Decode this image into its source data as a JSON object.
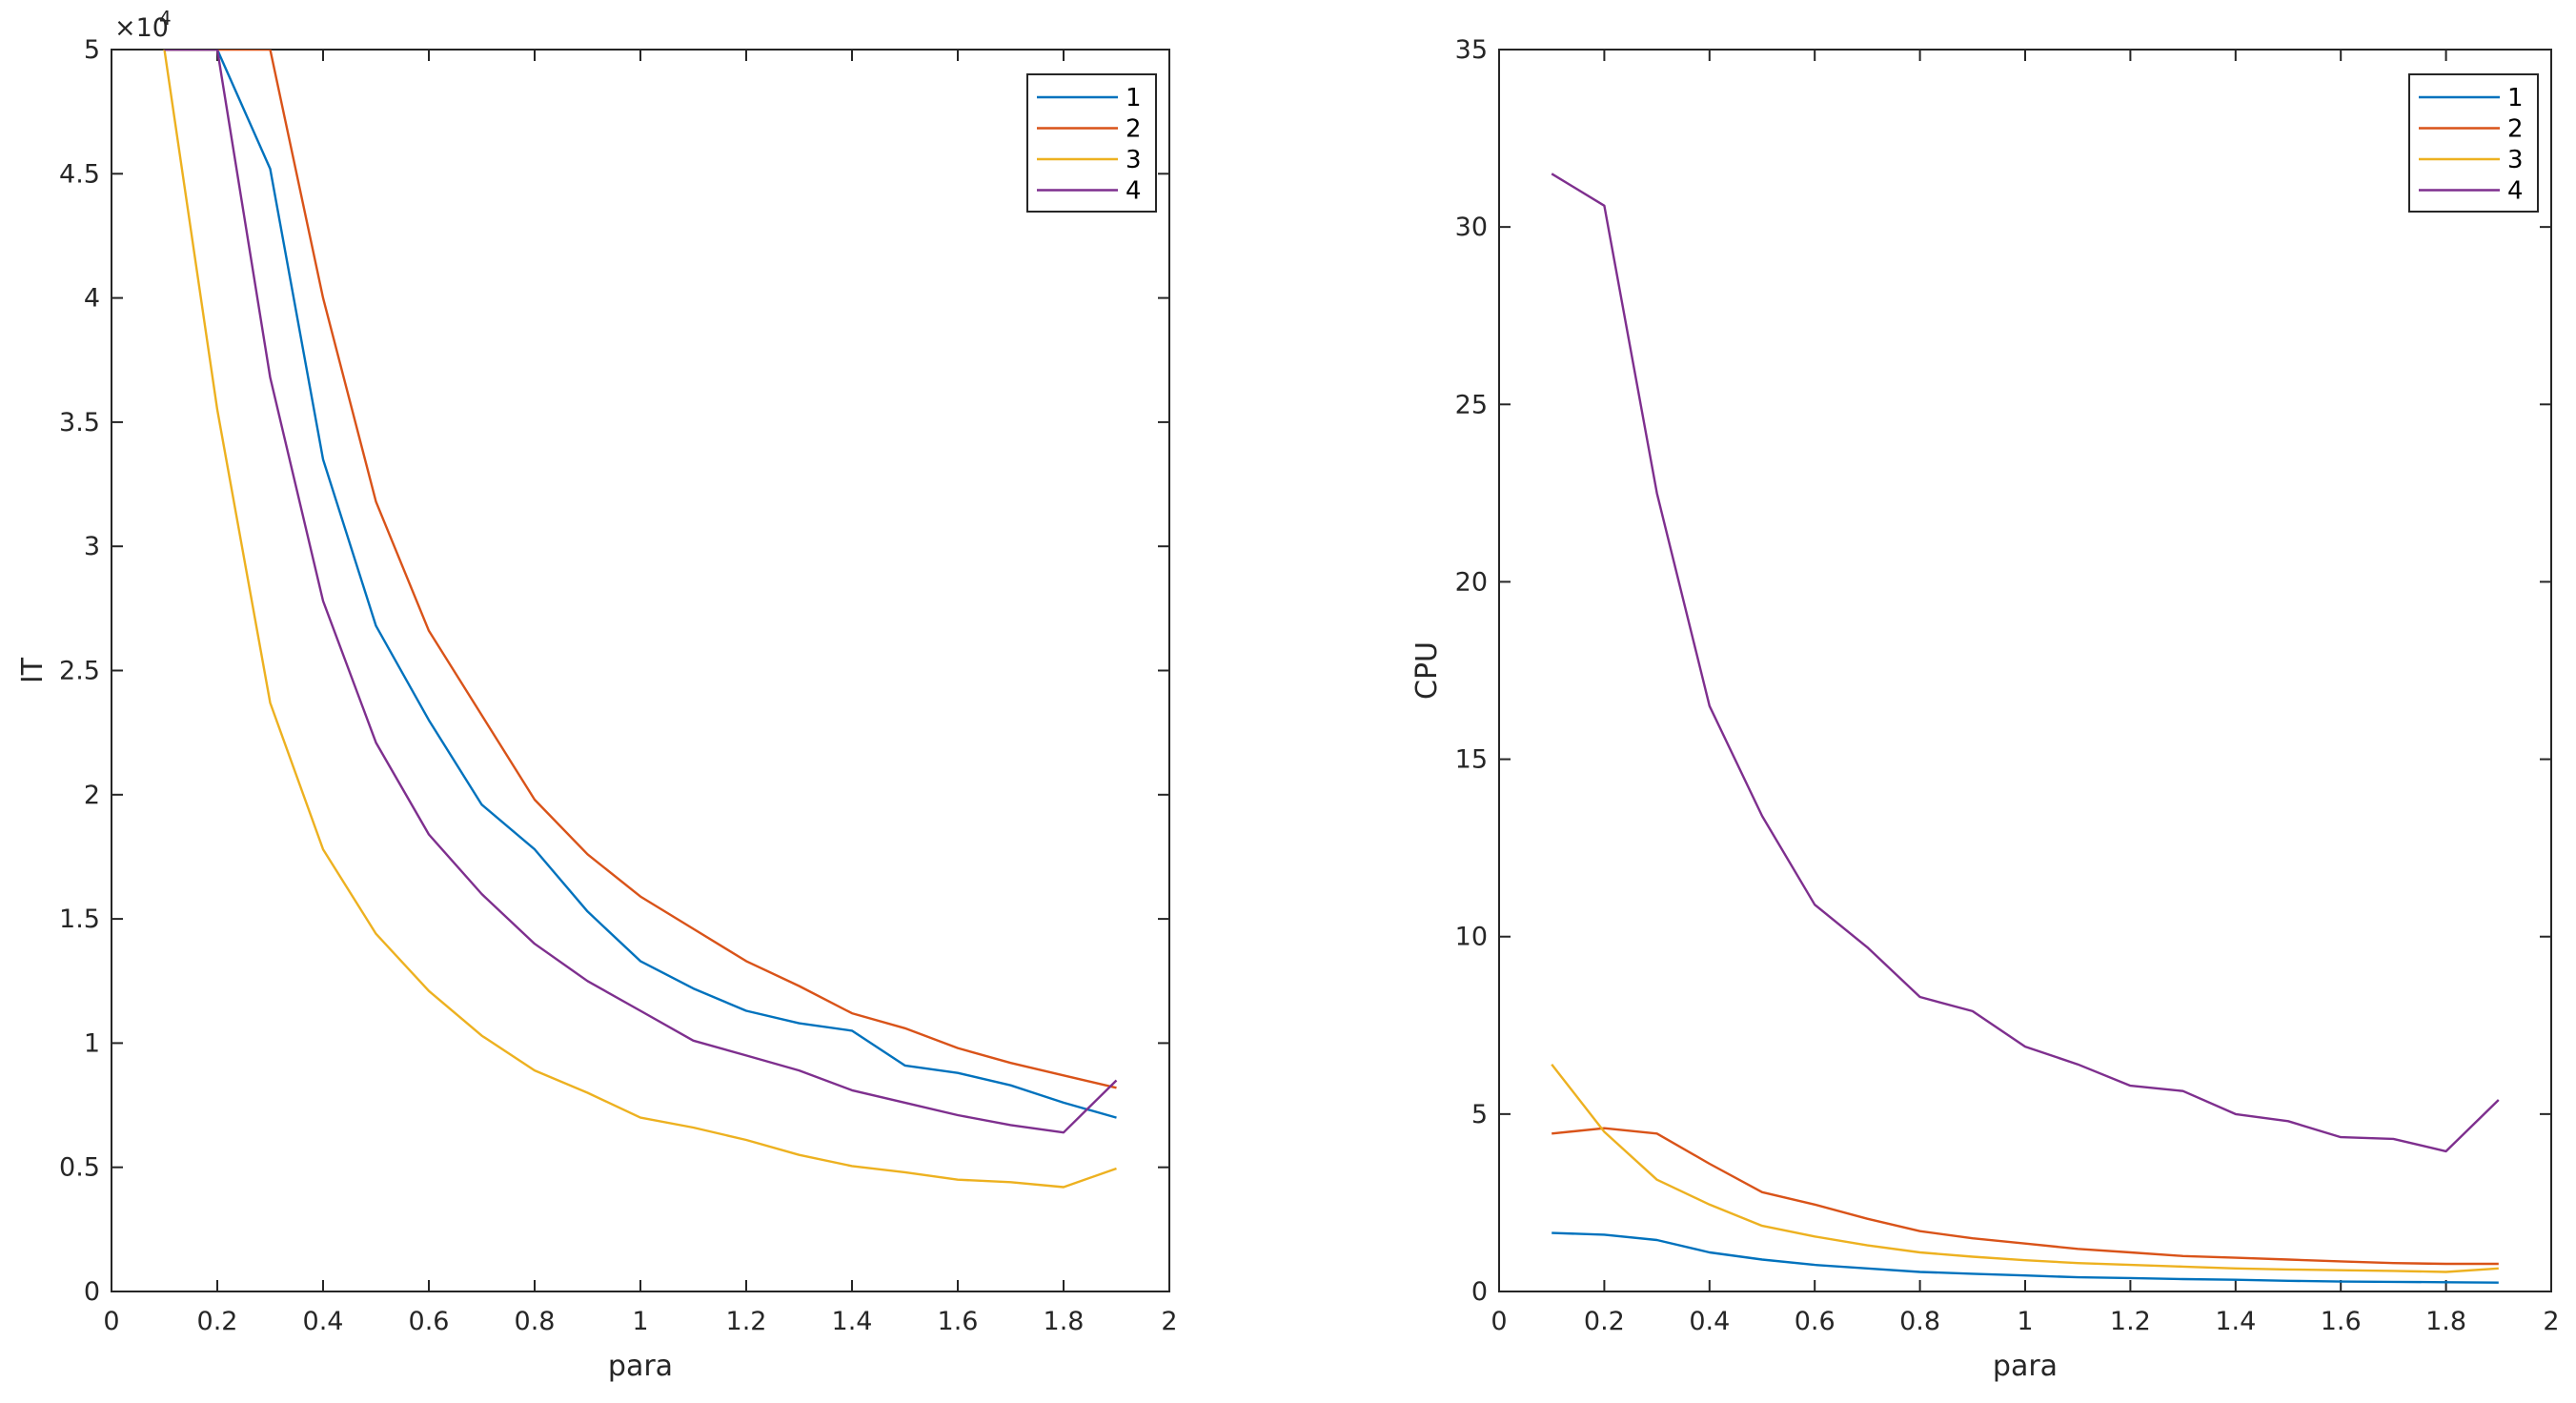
{
  "colors": [
    "#0072BD",
    "#D95319",
    "#EDB120",
    "#7E2F8E"
  ],
  "chart_data": [
    {
      "type": "line",
      "xlabel": "para",
      "ylabel": "IT",
      "xlim": [
        0,
        2
      ],
      "ylim": [
        0,
        50000
      ],
      "xticks": [
        0,
        0.2,
        0.4,
        0.6,
        0.8,
        1,
        1.2,
        1.4,
        1.6,
        1.8,
        2
      ],
      "xtick_labels": [
        "0",
        "0.2",
        "0.4",
        "0.6",
        "0.8",
        "1",
        "1.2",
        "1.4",
        "1.6",
        "1.8",
        "2"
      ],
      "yticks": [
        0,
        5000,
        10000,
        15000,
        20000,
        25000,
        30000,
        35000,
        40000,
        45000,
        50000
      ],
      "ytick_labels": [
        "0",
        "0.5",
        "1",
        "1.5",
        "2",
        "2.5",
        "3",
        "3.5",
        "4",
        "4.5",
        "5"
      ],
      "exponent_label": "×10",
      "exponent_power": "4",
      "legend_position": "top-right",
      "x": [
        0.1,
        0.2,
        0.3,
        0.4,
        0.5,
        0.6,
        0.7,
        0.8,
        0.9,
        1.0,
        1.1,
        1.2,
        1.3,
        1.4,
        1.5,
        1.6,
        1.7,
        1.8,
        1.9
      ],
      "series": [
        {
          "name": "1",
          "values": [
            50000,
            50000,
            45200,
            33500,
            26800,
            23000,
            19600,
            17800,
            15300,
            13300,
            12200,
            11300,
            10800,
            10500,
            9100,
            8800,
            8300,
            7600,
            7000
          ]
        },
        {
          "name": "2",
          "values": [
            50000,
            50000,
            50000,
            40000,
            31800,
            26600,
            23200,
            19800,
            17600,
            15900,
            14600,
            13300,
            12300,
            11200,
            10600,
            9800,
            9200,
            8700,
            8200
          ]
        },
        {
          "name": "3",
          "values": [
            50000,
            35500,
            23700,
            17800,
            14400,
            12100,
            10300,
            8900,
            8000,
            7000,
            6600,
            6100,
            5500,
            5050,
            4800,
            4500,
            4400,
            4200,
            4950
          ]
        },
        {
          "name": "4",
          "values": [
            50000,
            50000,
            36800,
            27800,
            22100,
            18400,
            16000,
            14000,
            12500,
            11300,
            10100,
            9500,
            8900,
            8100,
            7600,
            7100,
            6700,
            6400,
            8500
          ]
        }
      ]
    },
    {
      "type": "line",
      "xlabel": "para",
      "ylabel": "CPU",
      "xlim": [
        0,
        2
      ],
      "ylim": [
        0,
        35
      ],
      "xticks": [
        0,
        0.2,
        0.4,
        0.6,
        0.8,
        1,
        1.2,
        1.4,
        1.6,
        1.8,
        2
      ],
      "xtick_labels": [
        "0",
        "0.2",
        "0.4",
        "0.6",
        "0.8",
        "1",
        "1.2",
        "1.4",
        "1.6",
        "1.8",
        "2"
      ],
      "yticks": [
        0,
        5,
        10,
        15,
        20,
        25,
        30,
        35
      ],
      "ytick_labels": [
        "0",
        "5",
        "10",
        "15",
        "20",
        "25",
        "30",
        "35"
      ],
      "legend_position": "top-right",
      "x": [
        0.1,
        0.2,
        0.3,
        0.4,
        0.5,
        0.6,
        0.7,
        0.8,
        0.9,
        1.0,
        1.1,
        1.2,
        1.3,
        1.4,
        1.5,
        1.6,
        1.7,
        1.8,
        1.9
      ],
      "series": [
        {
          "name": "1",
          "values": [
            1.65,
            1.6,
            1.45,
            1.1,
            0.9,
            0.75,
            0.65,
            0.55,
            0.5,
            0.45,
            0.4,
            0.38,
            0.35,
            0.33,
            0.3,
            0.28,
            0.27,
            0.26,
            0.25
          ]
        },
        {
          "name": "2",
          "values": [
            4.45,
            4.6,
            4.45,
            3.6,
            2.8,
            2.45,
            2.05,
            1.7,
            1.5,
            1.35,
            1.2,
            1.1,
            1.0,
            0.95,
            0.9,
            0.85,
            0.8,
            0.78,
            0.78
          ]
        },
        {
          "name": "3",
          "values": [
            6.4,
            4.5,
            3.15,
            2.45,
            1.85,
            1.55,
            1.3,
            1.1,
            0.98,
            0.88,
            0.8,
            0.75,
            0.7,
            0.65,
            0.62,
            0.6,
            0.58,
            0.55,
            0.65
          ]
        },
        {
          "name": "4",
          "values": [
            31.5,
            30.6,
            22.5,
            16.5,
            13.4,
            10.9,
            9.7,
            8.3,
            7.9,
            6.9,
            6.4,
            5.8,
            5.65,
            5.0,
            4.8,
            4.35,
            4.3,
            3.95,
            5.4
          ]
        }
      ]
    }
  ]
}
